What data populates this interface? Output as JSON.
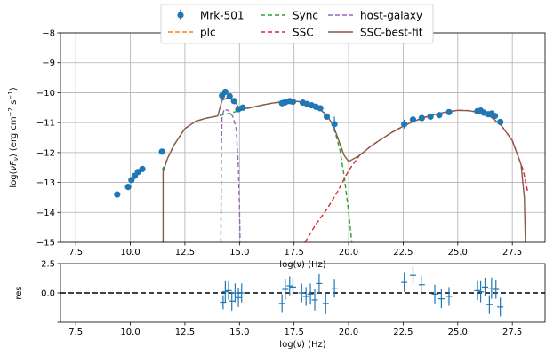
{
  "chart_data": [
    {
      "type": "scatter",
      "title": "",
      "xlabel": "log(ν)  (Hz)",
      "ylabel": "log(νF_ν)  (erg cm⁻² s⁻¹)",
      "ylabel_parts": {
        "main": "log(",
        "nu": "ν",
        "F": "F",
        "sub": "ν",
        "mid": ")  (erg cm",
        "exp1": "−2",
        "mid2": "  s",
        "exp2": "−1",
        "end": ")"
      },
      "xlim": [
        6.8,
        29.0
      ],
      "ylim": [
        -15,
        -8
      ],
      "xticks": [
        7.5,
        10.0,
        12.5,
        15.0,
        17.5,
        20.0,
        22.5,
        25.0,
        27.5
      ],
      "xtick_labels": [
        "7.5",
        "10.0",
        "12.5",
        "15.0",
        "17.5",
        "20.0",
        "22.5",
        "25.0",
        "27.5"
      ],
      "yticks": [
        -15,
        -14,
        -13,
        -12,
        -11,
        -10,
        -9,
        -8
      ],
      "ytick_labels": [
        "−15",
        "−14",
        "−13",
        "−12",
        "−11",
        "−10",
        "−9",
        "−8"
      ],
      "grid": true,
      "legend_position": "top-center",
      "legend": [
        "Mrk-501",
        "plc",
        "Sync",
        "SSC",
        "host-galaxy",
        "SSC-best-fit"
      ],
      "colors": {
        "data": "#1f77b4",
        "plc": "#ff7f0e",
        "sync": "#2ca02c",
        "ssc": "#d62728",
        "host": "#9467bd",
        "bestfit": "#8c564b"
      },
      "series": [
        {
          "name": "Mrk-501",
          "kind": "points",
          "x": [
            9.4,
            9.9,
            10.05,
            10.2,
            10.35,
            10.55,
            11.45,
            14.2,
            14.35,
            14.55,
            14.75,
            14.95,
            15.15,
            16.95,
            17.1,
            17.3,
            17.45,
            17.9,
            18.1,
            18.3,
            18.5,
            18.7,
            19.0,
            19.35,
            22.55,
            22.95,
            23.35,
            23.75,
            24.15,
            24.6,
            25.9,
            26.05,
            26.2,
            26.4,
            26.55,
            26.7,
            26.95
          ],
          "y": [
            -13.4,
            -13.15,
            -12.92,
            -12.78,
            -12.65,
            -12.55,
            -11.97,
            -10.1,
            -9.97,
            -10.12,
            -10.28,
            -10.55,
            -10.5,
            -10.35,
            -10.32,
            -10.28,
            -10.3,
            -10.33,
            -10.38,
            -10.42,
            -10.47,
            -10.52,
            -10.8,
            -11.05,
            -11.05,
            -10.9,
            -10.85,
            -10.8,
            -10.75,
            -10.65,
            -10.62,
            -10.6,
            -10.67,
            -10.72,
            -10.7,
            -10.78,
            -10.98
          ],
          "yerr": [
            0,
            0,
            0,
            0,
            0,
            0,
            0,
            0.05,
            0.05,
            0.05,
            0.05,
            0.05,
            0.05,
            0.05,
            0.05,
            0.05,
            0.05,
            0.05,
            0.05,
            0.05,
            0.05,
            0.05,
            0.08,
            0.25,
            0.15,
            0.08,
            0.05,
            0.05,
            0.05,
            0.05,
            0.07,
            0.07,
            0.07,
            0.07,
            0.07,
            0.07,
            0.1
          ]
        },
        {
          "name": "Sync",
          "kind": "line",
          "x": [
            11.45,
            11.7,
            12.0,
            12.5,
            13.0,
            13.5,
            14.0,
            14.5,
            15.0,
            15.5,
            16.0,
            16.5,
            17.0,
            17.5,
            18.0,
            18.5,
            19.0,
            19.3,
            19.6,
            19.8,
            20.0,
            20.15
          ],
          "y": [
            -12.6,
            -12.2,
            -11.75,
            -11.2,
            -10.95,
            -10.85,
            -10.78,
            -10.7,
            -10.6,
            -10.5,
            -10.42,
            -10.35,
            -10.3,
            -10.28,
            -10.32,
            -10.45,
            -10.75,
            -11.1,
            -11.9,
            -12.8,
            -14.0,
            -15.0
          ]
        },
        {
          "name": "SSC",
          "kind": "line",
          "x": [
            18.0,
            18.5,
            19.0,
            19.5,
            20.0,
            20.5,
            21.0,
            21.5,
            22.0,
            22.5,
            23.0,
            23.5,
            24.0,
            24.5,
            25.0,
            25.5,
            26.0,
            26.5,
            27.0,
            27.5,
            28.0,
            28.2
          ],
          "y": [
            -15.0,
            -14.4,
            -13.9,
            -13.3,
            -12.6,
            -12.1,
            -11.8,
            -11.55,
            -11.32,
            -11.12,
            -10.95,
            -10.82,
            -10.72,
            -10.64,
            -10.59,
            -10.6,
            -10.66,
            -10.8,
            -11.1,
            -11.6,
            -12.6,
            -13.3
          ]
        },
        {
          "name": "host-galaxy",
          "kind": "line",
          "x": [
            14.15,
            14.17,
            14.2,
            14.3,
            14.5,
            14.7,
            14.85,
            14.95,
            15.0,
            15.03
          ],
          "y": [
            -15.0,
            -12.0,
            -10.8,
            -10.55,
            -10.6,
            -10.8,
            -11.2,
            -12.5,
            -13.8,
            -15.0
          ]
        },
        {
          "name": "SSC-best-fit",
          "kind": "line",
          "x": [
            11.5,
            11.5,
            11.7,
            12.0,
            12.5,
            13.0,
            13.5,
            14.0,
            14.2,
            14.5,
            14.8,
            15.0,
            15.5,
            16.0,
            16.5,
            17.0,
            17.5,
            18.0,
            18.5,
            19.0,
            19.3,
            19.6,
            19.8,
            20.0,
            20.5,
            21.0,
            21.5,
            22.0,
            22.5,
            23.0,
            23.5,
            24.0,
            24.5,
            25.0,
            25.5,
            26.0,
            26.5,
            27.0,
            27.5,
            27.9,
            28.05,
            28.1
          ],
          "y": [
            -15.0,
            -12.65,
            -12.2,
            -11.75,
            -11.2,
            -10.95,
            -10.85,
            -10.78,
            -10.25,
            -10.15,
            -10.3,
            -10.55,
            -10.5,
            -10.42,
            -10.35,
            -10.3,
            -10.28,
            -10.32,
            -10.45,
            -10.75,
            -11.1,
            -11.7,
            -12.1,
            -12.3,
            -12.1,
            -11.8,
            -11.55,
            -11.32,
            -11.12,
            -10.95,
            -10.82,
            -10.72,
            -10.64,
            -10.59,
            -10.6,
            -10.66,
            -10.8,
            -11.1,
            -11.6,
            -12.4,
            -13.5,
            -15.0
          ]
        }
      ]
    },
    {
      "type": "scatter",
      "title": "",
      "xlabel": "log(ν)  (Hz)",
      "ylabel": "res",
      "xlim": [
        6.8,
        29.0
      ],
      "ylim": [
        -2.5,
        2.5
      ],
      "yticks": [
        -2.5,
        0.0,
        2.5
      ],
      "ytick_labels": [
        "",
        "0.0",
        "2.5"
      ],
      "xticks": [
        7.5,
        10.0,
        12.5,
        15.0,
        17.5,
        20.0,
        22.5,
        25.0,
        27.5
      ],
      "xtick_labels": [
        "7.5",
        "10.0",
        "12.5",
        "15.0",
        "17.5",
        "20.0",
        "22.5",
        "25.0",
        "27.5"
      ],
      "zero_line": 0.0,
      "series": [
        {
          "name": "",
          "kind": "residuals",
          "x": [
            14.25,
            14.35,
            14.5,
            14.65,
            14.8,
            14.95,
            15.1,
            16.95,
            17.1,
            17.3,
            17.45,
            17.85,
            18.05,
            18.25,
            18.45,
            18.65,
            18.95,
            19.35,
            22.55,
            22.95,
            23.35,
            23.95,
            24.25,
            24.6,
            25.9,
            26.05,
            26.25,
            26.45,
            26.55,
            26.75,
            26.95
          ],
          "y": [
            -0.8,
            0.1,
            0.2,
            -0.7,
            0.0,
            -0.4,
            0.0,
            -0.9,
            0.3,
            0.6,
            0.5,
            0.0,
            -0.3,
            -0.1,
            -0.6,
            0.8,
            -0.9,
            0.4,
            0.9,
            1.5,
            0.7,
            -0.1,
            -0.5,
            -0.3,
            0.2,
            0.1,
            0.5,
            -1.0,
            0.4,
            0.3,
            -1.2
          ],
          "yerr": [
            0.6,
            0.9,
            0.8,
            0.8,
            0.8,
            0.8,
            0.8,
            0.8,
            0.9,
            0.8,
            0.8,
            0.8,
            0.8,
            0.9,
            0.9,
            0.8,
            0.9,
            0.8,
            0.8,
            0.8,
            0.8,
            0.8,
            0.8,
            0.8,
            0.8,
            0.9,
            0.8,
            0.8,
            0.9,
            0.8,
            0.8
          ]
        }
      ]
    }
  ]
}
